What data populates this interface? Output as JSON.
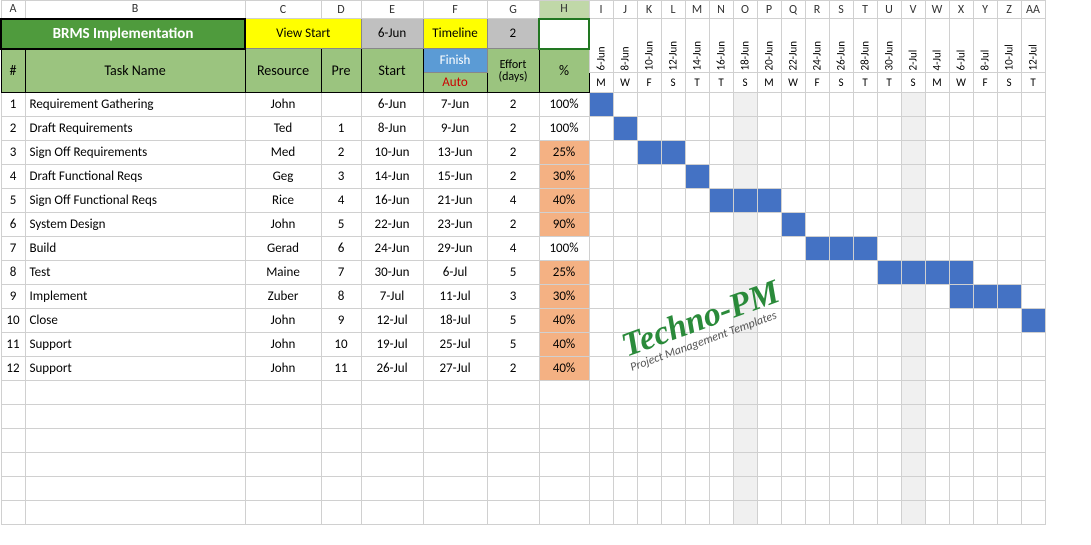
{
  "title": "BRMS Implementation",
  "topLabels": {
    "viewStart": "View Start",
    "viewStartDate": "6-Jun",
    "timeline": "Timeline",
    "timelineVal": "2",
    "finish": "Finish",
    "auto": "Auto",
    "effort": "Effort (days)"
  },
  "headers": {
    "rownum": "#",
    "task": "Task Name",
    "resource": "Resource",
    "pre": "Pre",
    "start": "Start",
    "pct": "%"
  },
  "colLetters": [
    "A",
    "B",
    "C",
    "D",
    "E",
    "F",
    "G",
    "H",
    "I",
    "J",
    "K",
    "L",
    "M",
    "N",
    "O",
    "P",
    "Q",
    "R",
    "S",
    "T",
    "U",
    "V",
    "W",
    "X",
    "Y",
    "Z",
    "AA"
  ],
  "timeline": {
    "dates": [
      "6-Jun",
      "8-Jun",
      "10-Jun",
      "12-Jun",
      "14-Jun",
      "16-Jun",
      "18-Jun",
      "20-Jun",
      "22-Jun",
      "24-Jun",
      "26-Jun",
      "28-Jun",
      "30-Jun",
      "2-Jul",
      "4-Jul",
      "6-Jul",
      "8-Jul",
      "10-Jul",
      "12-Jul"
    ],
    "days": [
      "M",
      "W",
      "F",
      "S",
      "T",
      "T",
      "S",
      "M",
      "W",
      "F",
      "S",
      "T",
      "T",
      "S",
      "M",
      "W",
      "F",
      "S",
      "T"
    ]
  },
  "shadedCols": [
    6,
    13
  ],
  "tasks": [
    {
      "n": 1,
      "name": "Requirement Gathering",
      "res": "John",
      "pre": "",
      "start": "6-Jun",
      "finish": "7-Jun",
      "eff": 2,
      "pct": "100%",
      "low": false,
      "bar": [
        0,
        0
      ]
    },
    {
      "n": 2,
      "name": "Draft  Requirements",
      "res": "Ted",
      "pre": "1",
      "start": "8-Jun",
      "finish": "9-Jun",
      "eff": 2,
      "pct": "100%",
      "low": false,
      "bar": [
        1,
        1
      ]
    },
    {
      "n": 3,
      "name": "Sign Off  Requirements",
      "res": "Med",
      "pre": "2",
      "start": "10-Jun",
      "finish": "13-Jun",
      "eff": 2,
      "pct": "25%",
      "low": true,
      "bar": [
        2,
        3
      ]
    },
    {
      "n": 4,
      "name": "Draft Functional Reqs",
      "res": "Geg",
      "pre": "3",
      "start": "14-Jun",
      "finish": "15-Jun",
      "eff": 2,
      "pct": "30%",
      "low": true,
      "bar": [
        4,
        4
      ]
    },
    {
      "n": 5,
      "name": "Sign Off Functional Reqs",
      "res": "Rice",
      "pre": "4",
      "start": "16-Jun",
      "finish": "21-Jun",
      "eff": 4,
      "pct": "40%",
      "low": true,
      "bar": [
        5,
        7
      ]
    },
    {
      "n": 6,
      "name": "System Design",
      "res": "John",
      "pre": "5",
      "start": "22-Jun",
      "finish": "23-Jun",
      "eff": 2,
      "pct": "90%",
      "low": true,
      "bar": [
        8,
        8
      ]
    },
    {
      "n": 7,
      "name": "Build",
      "res": "Gerad",
      "pre": "6",
      "start": "24-Jun",
      "finish": "29-Jun",
      "eff": 4,
      "pct": "100%",
      "low": false,
      "bar": [
        9,
        11
      ]
    },
    {
      "n": 8,
      "name": "Test",
      "res": "Maine",
      "pre": "7",
      "start": "30-Jun",
      "finish": "6-Jul",
      "eff": 5,
      "pct": "25%",
      "low": true,
      "bar": [
        12,
        15
      ]
    },
    {
      "n": 9,
      "name": "Implement",
      "res": "Zuber",
      "pre": "8",
      "start": "7-Jul",
      "finish": "11-Jul",
      "eff": 3,
      "pct": "30%",
      "low": true,
      "bar": [
        15,
        17
      ]
    },
    {
      "n": 10,
      "name": "Close",
      "res": "John",
      "pre": "9",
      "start": "12-Jul",
      "finish": "18-Jul",
      "eff": 5,
      "pct": "40%",
      "low": true,
      "bar": [
        18,
        18
      ]
    },
    {
      "n": 11,
      "name": "Support",
      "res": "John",
      "pre": "10",
      "start": "19-Jul",
      "finish": "25-Jul",
      "eff": 5,
      "pct": "40%",
      "low": true,
      "bar": null
    },
    {
      "n": 12,
      "name": "Support",
      "res": "John",
      "pre": "11",
      "start": "26-Jul",
      "finish": "27-Jul",
      "eff": 2,
      "pct": "40%",
      "low": true,
      "bar": null
    }
  ],
  "watermark": {
    "line1": "Techno-PM",
    "line2": "Project Management Templates"
  },
  "colWidths": {
    "A": 24,
    "B": 220,
    "C": 76,
    "D": 40,
    "E": 62,
    "F": 64,
    "G": 52,
    "H": 50,
    "timeline": 24
  },
  "colors": {
    "titleBg": "#4f9b3d",
    "titleFg": "#ffffff",
    "yellow": "#ffff00",
    "grey": "#c0c0c0",
    "blue": "#5b9bd5",
    "greenHdr": "#9bc47f",
    "autoFg": "#c00000",
    "pctLow": "#f4b183",
    "bar": "#4472c4",
    "shade": "#f0f0f0",
    "grid": "#d0d0d0",
    "selBorder": "#227722"
  }
}
